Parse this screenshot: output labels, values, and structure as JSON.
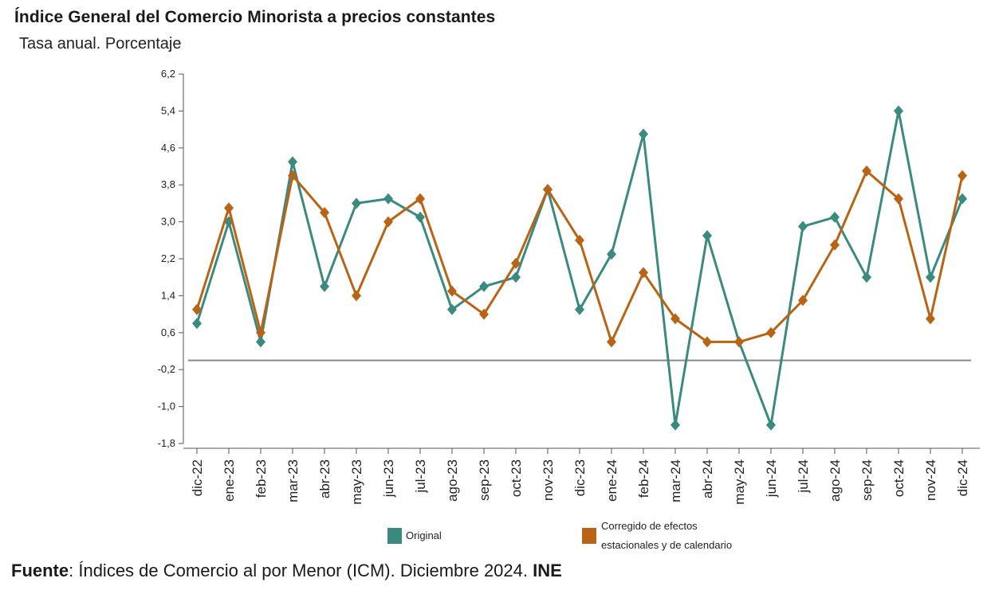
{
  "header": {
    "title": "Índice General del Comercio Minorista a precios constantes",
    "subtitle": "Tasa anual. Porcentaje"
  },
  "source": {
    "label": "Fuente",
    "text": ": Índices de Comercio al por Menor (ICM). Diciembre 2024. ",
    "org": "INE"
  },
  "colors": {
    "original": "#3b8a80",
    "corrected": "#b86414",
    "axis": "#555555",
    "zero_line": "#888888"
  },
  "chart_data": {
    "type": "line",
    "title": "Índice General del Comercio Minorista a precios constantes",
    "ylabel": "Tasa anual. Porcentaje",
    "xlabel": "",
    "ylim": [
      -1.8,
      6.2
    ],
    "yticks": [
      "6,2",
      "5,4",
      "4,6",
      "3,8",
      "3,0",
      "2,2",
      "1,4",
      "0,6",
      "-0,2",
      "-1,0",
      "-1,8"
    ],
    "yticks_values": [
      6.2,
      5.4,
      4.6,
      3.8,
      3.0,
      2.2,
      1.4,
      0.6,
      -0.2,
      -1.0,
      -1.8
    ],
    "reference_line": 0,
    "categories": [
      "dic-22",
      "ene-23",
      "feb-23",
      "mar-23",
      "abr-23",
      "may-23",
      "jun-23",
      "jul-23",
      "ago-23",
      "sep-23",
      "oct-23",
      "nov-23",
      "dic-23",
      "ene-24",
      "feb-24",
      "mar-24",
      "abr-24",
      "may-24",
      "jun-24",
      "jul-24",
      "ago-24",
      "sep-24",
      "oct-24",
      "nov-24",
      "dic-24"
    ],
    "series": [
      {
        "name": "Original",
        "color": "#3b8a80",
        "values": [
          0.8,
          3.0,
          0.4,
          4.3,
          1.6,
          3.4,
          3.5,
          3.1,
          1.1,
          1.6,
          1.8,
          3.7,
          1.1,
          2.3,
          4.9,
          -1.4,
          2.7,
          0.4,
          -1.4,
          2.9,
          3.1,
          1.8,
          5.4,
          1.8,
          3.5
        ]
      },
      {
        "name": "Corregido de efectos estacionales y de calendario",
        "legend_lines": [
          "Corregido de efectos",
          "estacionales y de calendario"
        ],
        "color": "#b86414",
        "values": [
          1.1,
          3.3,
          0.6,
          4.0,
          3.2,
          1.4,
          3.0,
          3.5,
          1.5,
          1.0,
          2.1,
          3.7,
          2.6,
          0.4,
          1.9,
          0.9,
          0.4,
          0.4,
          0.6,
          1.3,
          2.5,
          4.1,
          3.5,
          0.9,
          4.0
        ]
      }
    ]
  }
}
